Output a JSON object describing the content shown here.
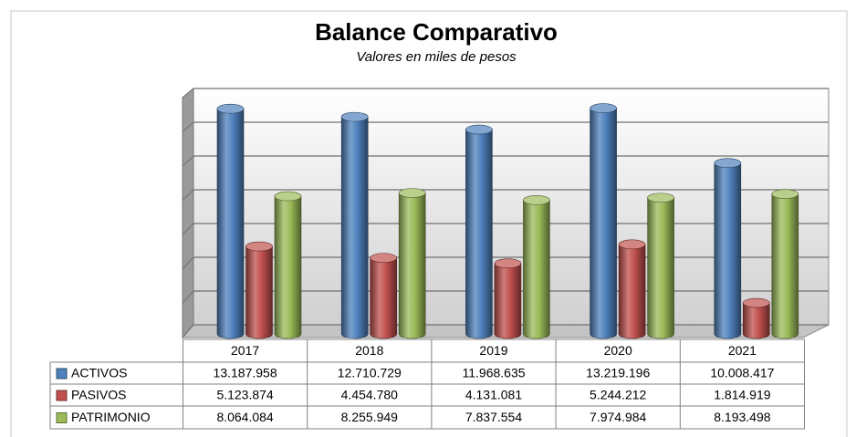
{
  "chart_data": {
    "type": "bar3d",
    "title": "Balance Comparativo",
    "subtitle": "Valores en miles de pesos",
    "categories": [
      "2017",
      "2018",
      "2019",
      "2020",
      "2021"
    ],
    "series": [
      {
        "name": "ACTIVOS",
        "color": "#4f81bd",
        "values": [
          13187958,
          12710729,
          11968635,
          13219196,
          10008417
        ],
        "value_labels": [
          "13.187.958",
          "12.710.729",
          "11.968.635",
          "13.219.196",
          "10.008.417"
        ]
      },
      {
        "name": "PASIVOS",
        "color": "#c0504d",
        "values": [
          5123874,
          4454780,
          4131081,
          5244212,
          1814919
        ],
        "value_labels": [
          "5.123.874",
          "4.454.780",
          "4.131.081",
          "5.244.212",
          "1.814.919"
        ]
      },
      {
        "name": "PATRIMONIO",
        "color": "#9bbb59",
        "values": [
          8064084,
          8255949,
          7837554,
          7974984,
          8193498
        ],
        "value_labels": [
          "8.064.084",
          "8.255.949",
          "7.837.554",
          "7.974.984",
          "8.193.498"
        ]
      }
    ],
    "ylim": [
      0,
      14000000
    ],
    "yticks": [
      0,
      2000000,
      4000000,
      6000000,
      8000000,
      10000000,
      12000000,
      14000000
    ],
    "grid": true
  }
}
